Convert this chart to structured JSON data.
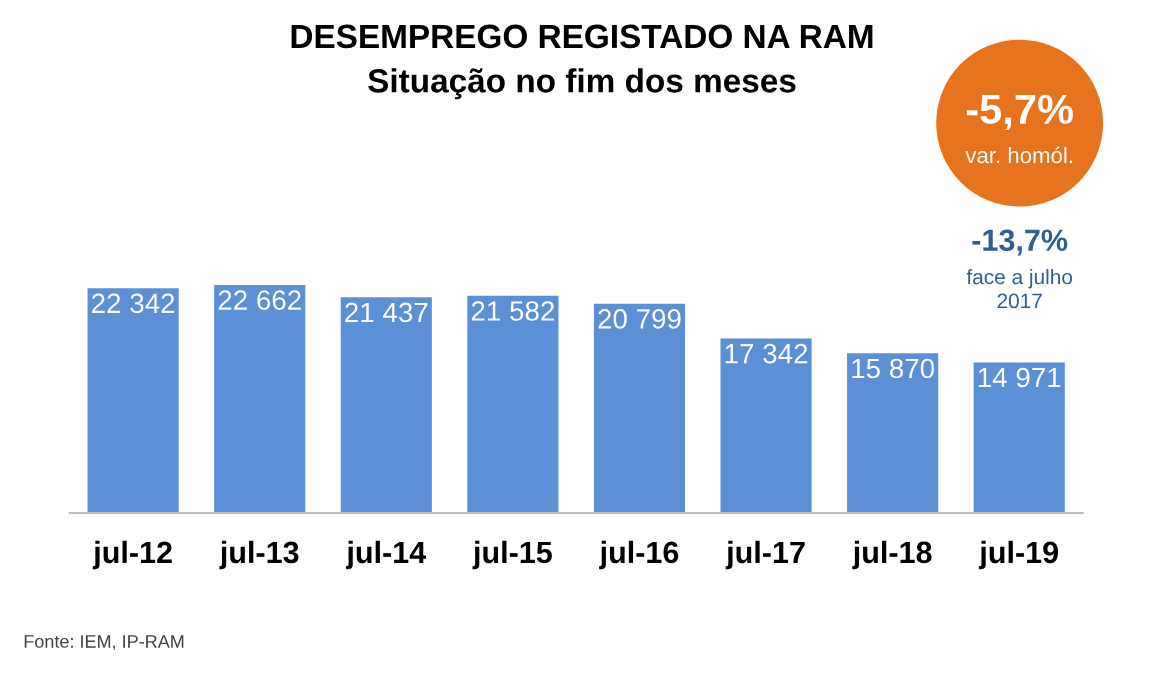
{
  "chart_data": {
    "type": "bar",
    "title": "DESEMPREGO REGISTADO NA RAM",
    "subtitle": "Situação no fim dos meses",
    "categories": [
      "jul-12",
      "jul-13",
      "jul-14",
      "jul-15",
      "jul-16",
      "jul-17",
      "jul-18",
      "jul-19"
    ],
    "values": [
      22342,
      22662,
      21437,
      21582,
      20799,
      17342,
      15870,
      14971
    ],
    "value_labels": [
      "22 342",
      "22 662",
      "21 437",
      "21 582",
      "20 799",
      "17 342",
      "15 870",
      "14 971"
    ],
    "color": "#5b8fd6",
    "grid": false,
    "annotations": [
      "-5,7%",
      "var. homól.",
      "-13,7%",
      "face a julho\n2017",
      "Fonte: IEM, IP-RAM"
    ]
  }
}
